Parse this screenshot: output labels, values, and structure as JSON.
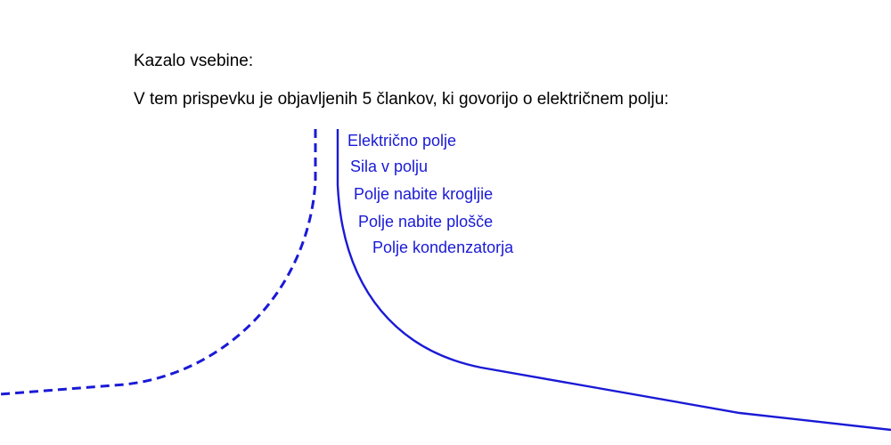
{
  "content": {
    "heading": "Kazalo vsebine:",
    "intro": "V tem prispevku je objavljenih 5 člankov, ki govorijo o električnem polju:",
    "toc_links": [
      "Električno polje",
      "Sila v polju",
      "Polje nabite krogljie",
      "Polje nabite plošče",
      "Polje kondenzatorja"
    ]
  },
  "colors": {
    "text": "#000000",
    "link": "#1a1ad6",
    "curve": "#1a1ad6"
  }
}
